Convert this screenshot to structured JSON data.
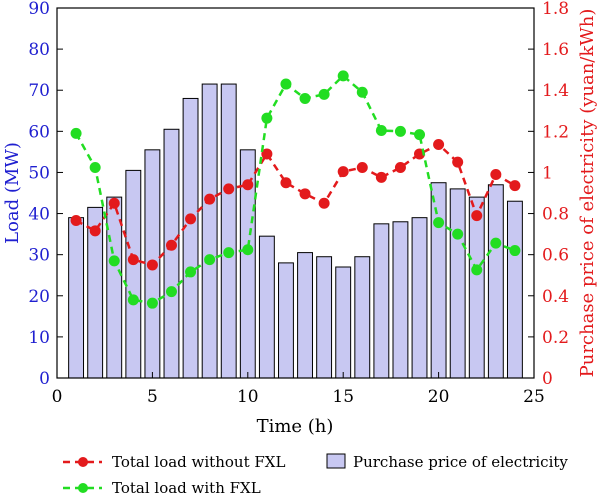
{
  "chart_data": {
    "type": "bar+line",
    "x_ticks": [
      0,
      5,
      10,
      15,
      20,
      25
    ],
    "xlabel": "Time (h)",
    "xlim": [
      0,
      25
    ],
    "ylabel_left": "Load (MW)",
    "ylim_left": [
      0,
      90
    ],
    "yticks_left": [
      0,
      10,
      20,
      30,
      40,
      50,
      60,
      70,
      80,
      90
    ],
    "ylabel_right": "Purchase price of electricity (yuan/kWh)",
    "ylim_right": [
      0,
      1.8
    ],
    "yticks_right": [
      "0",
      "0.2",
      "0.4",
      "0.6",
      "0.8",
      "1",
      "1.2",
      "1.4",
      "1.6",
      "1.8"
    ],
    "bars": {
      "name": "Purchase price of electricity",
      "axis": "right",
      "x": [
        1,
        2,
        3,
        4,
        5,
        6,
        7,
        8,
        9,
        10,
        11,
        12,
        13,
        14,
        15,
        16,
        17,
        18,
        19,
        20,
        21,
        22,
        23,
        24
      ],
      "values": [
        0.78,
        0.83,
        0.88,
        1.01,
        1.11,
        1.21,
        1.36,
        1.43,
        1.43,
        1.11,
        0.69,
        0.56,
        0.61,
        0.59,
        0.54,
        0.59,
        0.75,
        0.76,
        0.78,
        0.95,
        0.92,
        0.88,
        0.94,
        0.86
      ],
      "color": "#c8c8f2",
      "edge": "#000000"
    },
    "series": [
      {
        "name": "Total load without FXL",
        "axis": "left",
        "color": "#e31a1c",
        "x": [
          1,
          2,
          3,
          4,
          5,
          6,
          7,
          8,
          9,
          10,
          11,
          12,
          13,
          14,
          15,
          16,
          17,
          18,
          19,
          20,
          21,
          22,
          23,
          24
        ],
        "values": [
          38.3,
          35.8,
          42.5,
          28.8,
          27.5,
          32.3,
          38.7,
          43.5,
          46.0,
          47.0,
          54.5,
          47.5,
          44.8,
          42.5,
          50.2,
          51.2,
          48.8,
          51.2,
          54.5,
          56.8,
          52.5,
          39.5,
          49.5,
          46.8
        ]
      },
      {
        "name": "Total load with FXL",
        "axis": "left",
        "color": "#22dd22",
        "x": [
          1,
          2,
          3,
          4,
          5,
          6,
          7,
          8,
          9,
          10,
          11,
          12,
          13,
          14,
          15,
          16,
          17,
          18,
          19,
          20,
          21,
          22,
          23,
          24
        ],
        "values": [
          59.5,
          51.2,
          28.5,
          19.0,
          18.2,
          21.0,
          25.8,
          28.8,
          30.5,
          31.2,
          63.2,
          71.5,
          68.0,
          69.0,
          73.5,
          69.5,
          60.2,
          60.0,
          59.2,
          37.8,
          35.0,
          26.3,
          32.8,
          31.0
        ]
      }
    ],
    "legend": {
      "placement": "bottom",
      "entries": [
        "Total load without FXL",
        "Purchase price of electricity",
        "Total load with FXL"
      ]
    }
  },
  "colors": {
    "left_axis": "#1f1fd0",
    "right_axis": "#e31a1c",
    "frame": "#000000"
  }
}
